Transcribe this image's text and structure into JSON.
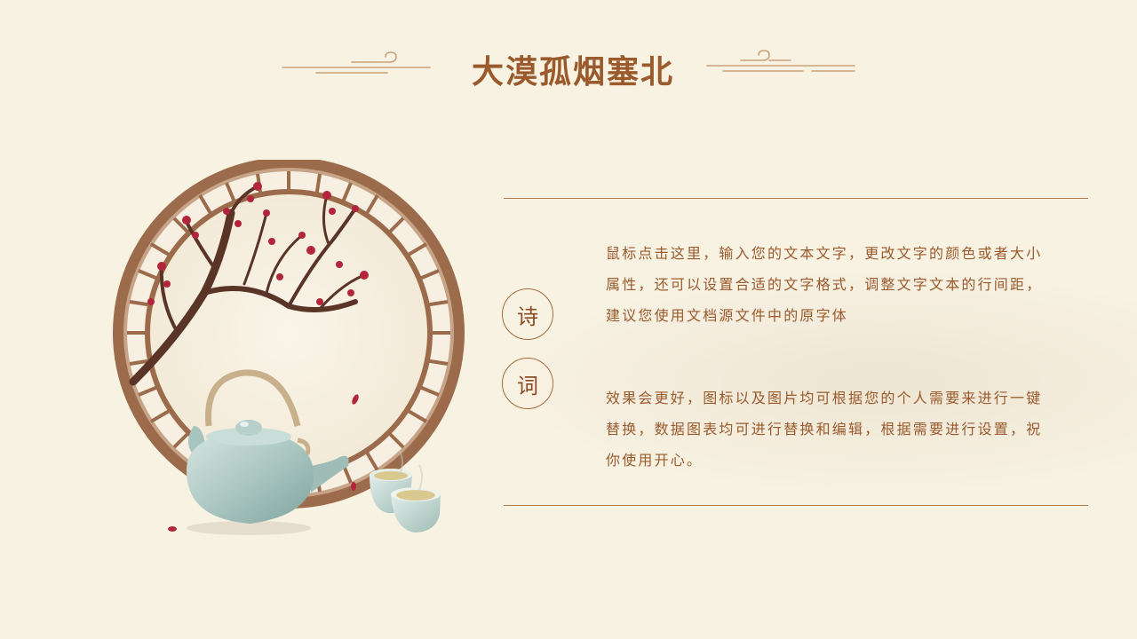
{
  "page": {
    "title": "大漠孤烟塞北"
  },
  "badges": [
    {
      "char": "诗"
    },
    {
      "char": "词"
    }
  ],
  "paragraphs": [
    {
      "text": "鼠标点击这里，输入您的文本文字，更改文字的颜色或者大小属性，还可以设置合适的文字格式，调整文字文本的行间距，建议您使用文档源文件中的原字体"
    },
    {
      "text": "效果会更好，图标以及图片均可根据您的个人需要来进行一键替换，数据图表均可进行替换和编辑，根据需要进行设置，祝你使用开心。"
    }
  ],
  "colors": {
    "background": "#f8f2e3",
    "accent": "#9a5a2c",
    "line": "#b07a4f"
  },
  "illustration": {
    "elements": [
      "round-lattice-window",
      "plum-blossom-branch",
      "celadon-teapot",
      "tea-cups"
    ]
  }
}
